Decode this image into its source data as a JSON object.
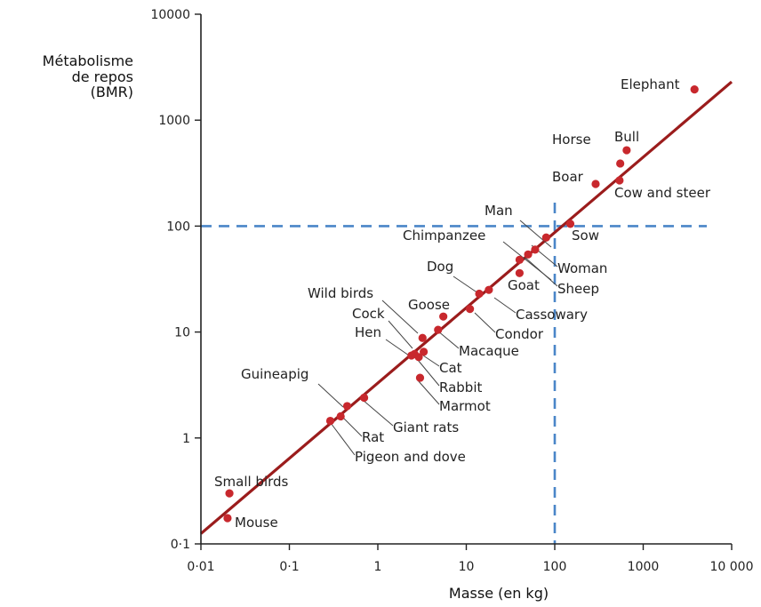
{
  "chart_data": {
    "type": "scatter",
    "title": "",
    "xlabel": "Masse (en kg)",
    "ylabel_lines": [
      "Métabolisme",
      "de repos",
      "(BMR)"
    ],
    "x_scale": "log",
    "y_scale": "log",
    "xlim": [
      0.01,
      10000
    ],
    "ylim": [
      0.1,
      10000
    ],
    "x_ticks": [
      {
        "value": 0.01,
        "label": "0·01"
      },
      {
        "value": 0.1,
        "label": "0·1"
      },
      {
        "value": 1,
        "label": "1"
      },
      {
        "value": 10,
        "label": "10"
      },
      {
        "value": 100,
        "label": "100"
      },
      {
        "value": 1000,
        "label": "1000"
      },
      {
        "value": 10000,
        "label": "10 000"
      }
    ],
    "y_ticks": [
      {
        "value": 0.1,
        "label": "0·1"
      },
      {
        "value": 1,
        "label": "1"
      },
      {
        "value": 10,
        "label": "10"
      },
      {
        "value": 100,
        "label": "100"
      },
      {
        "value": 1000,
        "label": "1000"
      },
      {
        "value": 10000,
        "label": "10000"
      }
    ],
    "grid": false,
    "point_color": "#c8282d",
    "fit_line": {
      "color": "#9b1c1c",
      "x": [
        0.01,
        10000
      ],
      "y": [
        0.125,
        2300
      ]
    },
    "reference_lines": {
      "color": "#4a86c8",
      "x": 100,
      "y": 100
    },
    "points": [
      {
        "name": "Elephant",
        "x": 3800,
        "y": 1950
      },
      {
        "name": "Bull",
        "x": 650,
        "y": 520
      },
      {
        "name": "Horse",
        "x": 550,
        "y": 390
      },
      {
        "name": "Boar",
        "x": 290,
        "y": 250
      },
      {
        "name": "Cow and steer",
        "x": 540,
        "y": 270
      },
      {
        "name": "Man",
        "x": 80,
        "y": 78
      },
      {
        "name": "Sow",
        "x": 150,
        "y": 105
      },
      {
        "name": "Chimpanzee",
        "x": 40,
        "y": 48
      },
      {
        "name": "Woman",
        "x": 60,
        "y": 60
      },
      {
        "name": "Sheep",
        "x": 50,
        "y": 54
      },
      {
        "name": "Goat",
        "x": 40,
        "y": 36
      },
      {
        "name": "Dog",
        "x": 14,
        "y": 23
      },
      {
        "name": "Cassowary",
        "x": 18,
        "y": 25
      },
      {
        "name": "Condor",
        "x": 11,
        "y": 16.5
      },
      {
        "name": "Goose",
        "x": 5.5,
        "y": 14
      },
      {
        "name": "Wild birds",
        "x": 3.2,
        "y": 8.8
      },
      {
        "name": "Macaque",
        "x": 4.8,
        "y": 10.5
      },
      {
        "name": "Cock",
        "x": 2.6,
        "y": 6.2
      },
      {
        "name": "Hen",
        "x": 2.4,
        "y": 6
      },
      {
        "name": "Cat",
        "x": 3.3,
        "y": 6.5
      },
      {
        "name": "Rabbit",
        "x": 2.9,
        "y": 5.8
      },
      {
        "name": "Marmot",
        "x": 3,
        "y": 3.7
      },
      {
        "name": "Guineapig",
        "x": 0.45,
        "y": 2
      },
      {
        "name": "Giant rats",
        "x": 0.7,
        "y": 2.4
      },
      {
        "name": "Rat",
        "x": 0.38,
        "y": 1.6
      },
      {
        "name": "Pigeon and dove",
        "x": 0.29,
        "y": 1.45
      },
      {
        "name": "Small birds",
        "x": 0.021,
        "y": 0.3
      },
      {
        "name": "Mouse",
        "x": 0.02,
        "y": 0.175
      }
    ]
  }
}
